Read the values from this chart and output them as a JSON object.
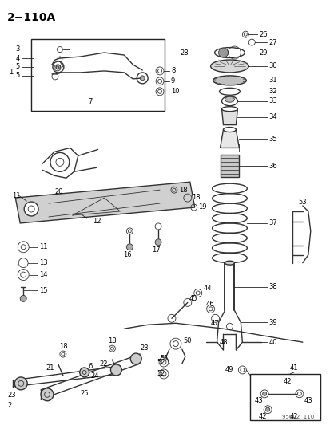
{
  "title": "2−110A",
  "background_color": "#ffffff",
  "line_color": "#222222",
  "diagram_color": "#333333",
  "watermark": "95602  110",
  "fig_width": 4.14,
  "fig_height": 5.33,
  "dpi": 100
}
